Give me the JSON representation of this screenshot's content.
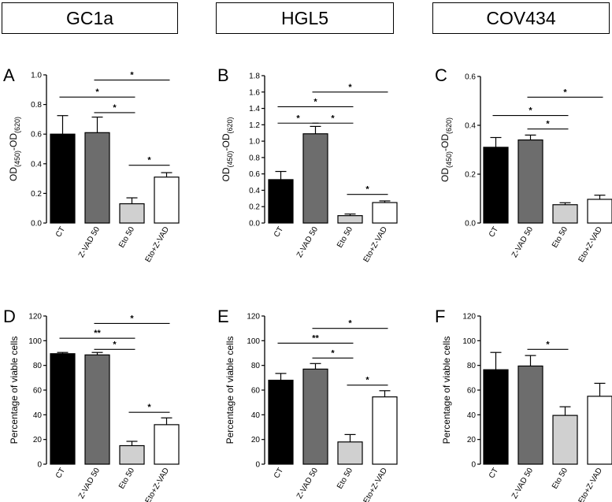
{
  "headers": [
    "GC1a",
    "HGL5",
    "COV434"
  ],
  "chart_data": [
    {
      "type": "bar",
      "panel_label": "A",
      "ylabel": "OD(450)-OD(620)",
      "ylabel_main": "OD",
      "ylabel_sub1": "(450)",
      "ylabel_mid": "-OD",
      "ylabel_sub2": "(620)",
      "ylim": [
        0,
        1.0
      ],
      "yticks": [
        "0.0",
        "0.2",
        "0.4",
        "0.6",
        "0.8",
        "1.0"
      ],
      "categories": [
        "CT",
        "Z-VAD 50",
        "Eto 50",
        "Eto+Z-VAD"
      ],
      "values": [
        0.6,
        0.61,
        0.13,
        0.31
      ],
      "errors": [
        0.125,
        0.105,
        0.04,
        0.03
      ],
      "fills": [
        "#000000",
        "#6d6d6d",
        "#d0d0d0",
        "#ffffff"
      ],
      "significance": [
        {
          "from": 0,
          "to": 2,
          "level": 0.85,
          "label": "*"
        },
        {
          "from": 1,
          "to": 2,
          "level": 0.745,
          "label": "*"
        },
        {
          "from": 1,
          "to": 3,
          "level": 0.965,
          "label": "*"
        },
        {
          "from": 2,
          "to": 3,
          "level": 0.39,
          "label": "*"
        }
      ]
    },
    {
      "type": "bar",
      "panel_label": "B",
      "ylabel": "OD(450)-OD(620)",
      "ylabel_main": "OD",
      "ylabel_sub1": "(450)",
      "ylabel_mid": "-OD",
      "ylabel_sub2": "(620)",
      "ylim": [
        0,
        1.8
      ],
      "yticks": [
        "0.0",
        "0.2",
        "0.4",
        "0.6",
        "0.8",
        "1.0",
        "1.2",
        "1.4",
        "1.6",
        "1.8"
      ],
      "categories": [
        "CT",
        "Z-VAD 50",
        "Eto 50",
        "Eto+Z-VAD"
      ],
      "values": [
        0.53,
        1.09,
        0.09,
        0.25
      ],
      "errors": [
        0.1,
        0.09,
        0.02,
        0.02
      ],
      "fills": [
        "#000000",
        "#6d6d6d",
        "#d0d0d0",
        "#ffffff"
      ],
      "significance": [
        {
          "from": 0,
          "to": 1,
          "level": 1.22,
          "label": "*"
        },
        {
          "from": 0,
          "to": 2,
          "level": 1.42,
          "label": "*"
        },
        {
          "from": 1,
          "to": 2,
          "level": 1.22,
          "label": "*"
        },
        {
          "from": 1,
          "to": 3,
          "level": 1.6,
          "label": "*"
        },
        {
          "from": 2,
          "to": 3,
          "level": 0.35,
          "label": "*"
        }
      ]
    },
    {
      "type": "bar",
      "panel_label": "C",
      "ylabel": "OD(450)-OD(620)",
      "ylabel_main": "OD",
      "ylabel_sub1": "(450)",
      "ylabel_mid": "-OD",
      "ylabel_sub2": "(620)",
      "ylim": [
        0,
        0.6
      ],
      "yticks": [
        "0.0",
        "0.2",
        "0.4",
        "0.6"
      ],
      "categories": [
        "CT",
        "Z-VAD 50",
        "Eto 50",
        "Eto+Z-VAD"
      ],
      "values": [
        0.31,
        0.34,
        0.075,
        0.097
      ],
      "errors": [
        0.04,
        0.02,
        0.008,
        0.017
      ],
      "fills": [
        "#000000",
        "#6d6d6d",
        "#d0d0d0",
        "#ffffff"
      ],
      "significance": [
        {
          "from": 0,
          "to": 2,
          "level": 0.44,
          "label": "*"
        },
        {
          "from": 1,
          "to": 2,
          "level": 0.385,
          "label": "*"
        },
        {
          "from": 1,
          "to": 3,
          "level": 0.515,
          "label": "*"
        }
      ]
    },
    {
      "type": "bar",
      "panel_label": "D",
      "ylabel": "Percentage of viable cells",
      "ylim": [
        0,
        120
      ],
      "yticks": [
        "0",
        "20",
        "40",
        "60",
        "80",
        "100",
        "120"
      ],
      "categories": [
        "CT",
        "Z-VAD 50",
        "Eto 50",
        "Eto+Z-VAD"
      ],
      "values": [
        89.5,
        88.5,
        15,
        32
      ],
      "errors": [
        1,
        2,
        3.5,
        5.5
      ],
      "fills": [
        "#000000",
        "#6d6d6d",
        "#d0d0d0",
        "#ffffff"
      ],
      "significance": [
        {
          "from": 0,
          "to": 2,
          "level": 102,
          "label": "**"
        },
        {
          "from": 1,
          "to": 2,
          "level": 93,
          "label": "*"
        },
        {
          "from": 1,
          "to": 3,
          "level": 114,
          "label": "*"
        },
        {
          "from": 2,
          "to": 3,
          "level": 42,
          "label": "*"
        }
      ]
    },
    {
      "type": "bar",
      "panel_label": "E",
      "ylabel": "Percentage of viable cells",
      "ylim": [
        0,
        120
      ],
      "yticks": [
        "0",
        "20",
        "40",
        "60",
        "80",
        "100",
        "120"
      ],
      "categories": [
        "CT",
        "Z-VAD 50",
        "Eto 50",
        "Eto+Z-VAD"
      ],
      "values": [
        68,
        77,
        18,
        54.5
      ],
      "errors": [
        5.5,
        4.5,
        6,
        5
      ],
      "fills": [
        "#000000",
        "#6d6d6d",
        "#d0d0d0",
        "#ffffff"
      ],
      "significance": [
        {
          "from": 0,
          "to": 2,
          "level": 98,
          "label": "**"
        },
        {
          "from": 1,
          "to": 2,
          "level": 86,
          "label": "*"
        },
        {
          "from": 1,
          "to": 3,
          "level": 110,
          "label": "*"
        },
        {
          "from": 2,
          "to": 3,
          "level": 64,
          "label": "*"
        }
      ]
    },
    {
      "type": "bar",
      "panel_label": "F",
      "ylabel": "Percentage of viable cells",
      "ylim": [
        0,
        120
      ],
      "yticks": [
        "0",
        "20",
        "40",
        "60",
        "80",
        "100",
        "120"
      ],
      "categories": [
        "CT",
        "Z-VAD 50",
        "Eto 50",
        "Eto+Z-VAD"
      ],
      "values": [
        76.5,
        79.5,
        39.5,
        55
      ],
      "errors": [
        14,
        8.5,
        7,
        10.5
      ],
      "fills": [
        "#000000",
        "#6d6d6d",
        "#d0d0d0",
        "#ffffff"
      ],
      "significance": [
        {
          "from": 1,
          "to": 2,
          "level": 93,
          "label": "*"
        }
      ]
    }
  ]
}
